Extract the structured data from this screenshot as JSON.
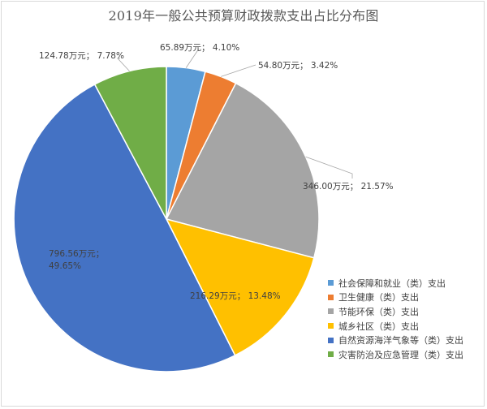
{
  "chart_data": {
    "type": "pie",
    "title": "2019年一般公共预算财政拨款支出占比分布图",
    "unit": "万元",
    "slices": [
      {
        "name": "社会保障和就业（类）支出",
        "value": 65.89,
        "percent": "4.10%",
        "color": "#5B9BD5"
      },
      {
        "name": "卫生健康（类）支出",
        "value": 54.8,
        "percent": "3.42%",
        "color": "#ED7D31"
      },
      {
        "name": "节能环保（类）支出",
        "value": 346.0,
        "percent": "21.57%",
        "color": "#A5A5A5"
      },
      {
        "name": "城乡社区（类）支出",
        "value": 216.29,
        "percent": "13.48%",
        "color": "#FFC000"
      },
      {
        "name": "自然资源海洋气象等（类）支出",
        "value": 796.56,
        "percent": "49.65%",
        "color": "#4472C4"
      },
      {
        "name": "灾害防治及应急管理（类）支出",
        "value": 124.78,
        "percent": "7.78%",
        "color": "#70AD47"
      }
    ],
    "data_labels": [
      {
        "value_text": "65.89万元",
        "percent_text": "4.10%"
      },
      {
        "value_text": "54.80万元",
        "percent_text": "3.42%"
      },
      {
        "value_text": "346.00万元",
        "percent_text": "21.57%"
      },
      {
        "value_text": "216.29万元",
        "percent_text": "13.48%"
      },
      {
        "value_text": "796.56万元",
        "percent_text": "49.65%"
      },
      {
        "value_text": "124.78万元",
        "percent_text": "7.78%"
      }
    ],
    "label_separator": "；",
    "legend_position": "bottom-right"
  }
}
